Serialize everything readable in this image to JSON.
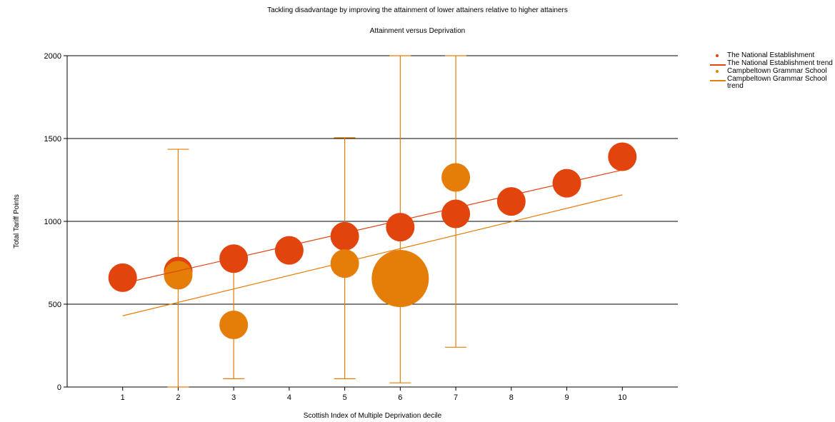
{
  "chart_data": {
    "type": "bubble",
    "title": "Tackling disadvantage by improving the attainment of lower attainers relative to higher attainers",
    "subtitle": "Attainment versus Deprivation",
    "xlabel": "Scottish Index of Multiple Deprivation decile",
    "ylabel": "Total Tariff Points",
    "xlim": [
      0,
      11
    ],
    "ylim": [
      0,
      2000
    ],
    "x_ticks": [
      1,
      2,
      3,
      4,
      5,
      6,
      7,
      8,
      9,
      10
    ],
    "y_ticks": [
      0,
      500,
      1000,
      1500,
      2000
    ],
    "grid": "horizontal",
    "legend_position": "top-right",
    "series": [
      {
        "name": "The National Establishment",
        "color": "#e2440e",
        "points": [
          {
            "x": 1,
            "y": 660,
            "size": 1
          },
          {
            "x": 2,
            "y": 700,
            "size": 1
          },
          {
            "x": 3,
            "y": 775,
            "size": 1
          },
          {
            "x": 4,
            "y": 825,
            "size": 1
          },
          {
            "x": 5,
            "y": 910,
            "size": 1
          },
          {
            "x": 6,
            "y": 965,
            "size": 1
          },
          {
            "x": 7,
            "y": 1045,
            "size": 1
          },
          {
            "x": 8,
            "y": 1120,
            "size": 1
          },
          {
            "x": 9,
            "y": 1230,
            "size": 1
          },
          {
            "x": 10,
            "y": 1390,
            "size": 1
          }
        ]
      },
      {
        "name": "Campbeltown Grammar School",
        "color": "#e57e08",
        "points": [
          {
            "x": 2,
            "y": 675,
            "size": 1,
            "error_low": 0,
            "error_high": 1435
          },
          {
            "x": 3,
            "y": 375,
            "size": 1,
            "error_low": 50,
            "error_high": 760
          },
          {
            "x": 5,
            "y": 745,
            "size": 1,
            "error_low": 50,
            "error_high": 1505
          },
          {
            "x": 6,
            "y": 655,
            "size": 4,
            "error_low": 25,
            "error_high": 2000
          },
          {
            "x": 7,
            "y": 1265,
            "size": 1,
            "error_low": 240,
            "error_high": 2000
          }
        ]
      }
    ],
    "trends": [
      {
        "name": "The National Establishment trend",
        "color": "#e2440e",
        "x": [
          1,
          10
        ],
        "y": [
          625,
          1310
        ]
      },
      {
        "name": "Campbeltown Grammar School trend",
        "color": "#e57e08",
        "x": [
          1,
          10
        ],
        "y": [
          430,
          1160
        ]
      }
    ],
    "legend": [
      {
        "label": "The National Establishment",
        "kind": "marker",
        "color": "#e2440e"
      },
      {
        "label": "The National Establishment trend",
        "kind": "line",
        "color": "#e2440e"
      },
      {
        "label": "Campbeltown Grammar School",
        "kind": "marker",
        "color": "#e57e08"
      },
      {
        "label": "Campbeltown Grammar School trend",
        "kind": "line",
        "color": "#e57e08"
      }
    ]
  }
}
